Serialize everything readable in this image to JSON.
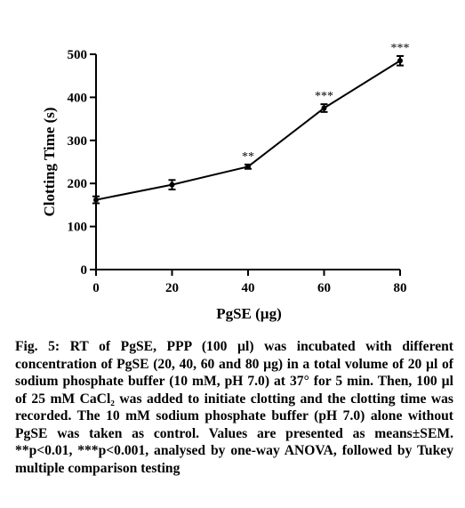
{
  "chart_data": {
    "type": "line",
    "x": [
      0,
      20,
      40,
      60,
      80
    ],
    "y": [
      162,
      197,
      239,
      375,
      485
    ],
    "error": [
      8,
      11,
      5,
      9,
      11
    ],
    "significance": [
      "",
      "",
      "**",
      "***",
      "***"
    ],
    "xlabel": "PgSE (µg)",
    "ylabel": "Clotting Time (s)",
    "xlim": [
      0,
      80
    ],
    "ylim": [
      0,
      500
    ],
    "xticks": [
      0,
      20,
      40,
      60,
      80
    ],
    "yticks": [
      0,
      100,
      200,
      300,
      400,
      500
    ],
    "grid": false,
    "color": "#000000"
  },
  "caption": "Fig. 5: RT of PgSE, PPP (100 µl) was incubated with different concentration of PgSE (20, 40, 60 and 80 µg) in a total volume of 20 µl of sodium phosphate buffer (10 mM, pH 7.0) at 37° for 5 min. Then, 100 µl of 25 mM CaCl₂ was added to initiate clotting and the clotting time was recorded. The 10 mM sodium phosphate buffer (pH 7.0) alone without PgSE was taken as control. Values are presented as means±SEM. **p<0.01, ***p<0.001, analysed by one-way ANOVA, followed by Tukey multiple comparison testing"
}
